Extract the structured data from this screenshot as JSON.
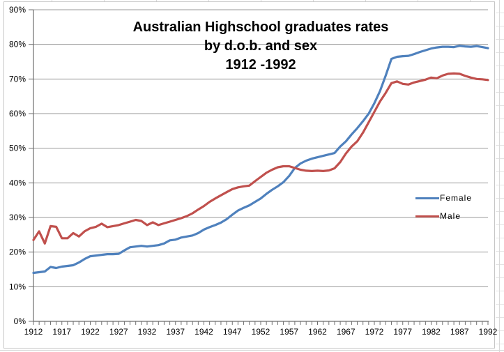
{
  "chart_data": {
    "type": "line",
    "title_lines": [
      "Australian Highschool graduates rates",
      "by d.o.b. and sex",
      "1912 -1992"
    ],
    "x_start": 1912,
    "x_end": 1992,
    "x_step": 1,
    "xlim": [
      1912,
      1992
    ],
    "ylim": [
      0,
      90
    ],
    "grid": true,
    "legend_position": "center-right",
    "xtick_labels": [
      "1912",
      "1917",
      "1922",
      "1927",
      "1932",
      "1937",
      "1942",
      "1947",
      "1952",
      "1957",
      "1962",
      "1967",
      "1972",
      "1977",
      "1982",
      "1987",
      "1992"
    ],
    "ytick_labels": [
      "0%",
      "10%",
      "20%",
      "30%",
      "40%",
      "50%",
      "60%",
      "70%",
      "80%",
      "90%"
    ],
    "series": [
      {
        "name": "Female",
        "color": "#4F81BD",
        "values": [
          14,
          14.2,
          14.4,
          15.7,
          15.4,
          15.8,
          16,
          16.2,
          17,
          18,
          18.8,
          19,
          19.2,
          19.4,
          19.4,
          19.5,
          20.5,
          21.4,
          21.6,
          21.8,
          21.6,
          21.8,
          22,
          22.5,
          23.4,
          23.6,
          24.2,
          24.5,
          24.8,
          25.5,
          26.5,
          27.2,
          27.8,
          28.5,
          29.5,
          30.8,
          32,
          32.8,
          33.5,
          34.5,
          35.5,
          36.8,
          38,
          39,
          40.2,
          42,
          44.3,
          45.6,
          46.4,
          47,
          47.4,
          47.8,
          48.2,
          48.6,
          50.5,
          52,
          54,
          55.8,
          57.8,
          60,
          63,
          66.5,
          71,
          75.8,
          76.4,
          76.6,
          76.7,
          77.2,
          77.8,
          78.3,
          78.8,
          79.1,
          79.3,
          79.3,
          79.2,
          79.6,
          79.4,
          79.3,
          79.5,
          79.2,
          78.9
        ]
      },
      {
        "name": "Male",
        "color": "#C0504D",
        "values": [
          23.5,
          26,
          22.5,
          27.5,
          27.3,
          24,
          24,
          25.5,
          24.5,
          26,
          26.9,
          27.3,
          28.2,
          27.2,
          27.5,
          27.8,
          28.3,
          28.8,
          29.3,
          29,
          27.8,
          28.6,
          27.8,
          28.3,
          28.8,
          29.3,
          29.8,
          30.4,
          31.2,
          32.3,
          33.3,
          34.5,
          35.5,
          36.4,
          37.3,
          38.2,
          38.7,
          39,
          39.2,
          40.5,
          41.7,
          42.9,
          43.8,
          44.5,
          44.8,
          44.8,
          44.3,
          43.8,
          43.5,
          43.4,
          43.5,
          43.4,
          43.6,
          44.2,
          46,
          48.5,
          50.5,
          52,
          54.5,
          57.5,
          60.5,
          63.5,
          66,
          68.8,
          69.3,
          68.6,
          68.4,
          69,
          69.4,
          69.8,
          70.4,
          70.2,
          71,
          71.5,
          71.6,
          71.5,
          70.9,
          70.4,
          70,
          69.9,
          69.7
        ]
      }
    ],
    "colors": {
      "gridline": "#9a9a9a",
      "axis": "#6e6e6e",
      "tick_label": "#000000",
      "title": "#000000",
      "frame_border": "#c6c6c6",
      "background": "#ffffff"
    },
    "line_width": 3.2
  },
  "legend": {
    "items": [
      {
        "label": "Female",
        "color": "#4F81BD"
      },
      {
        "label": "Male",
        "color": "#C0504D"
      }
    ]
  }
}
